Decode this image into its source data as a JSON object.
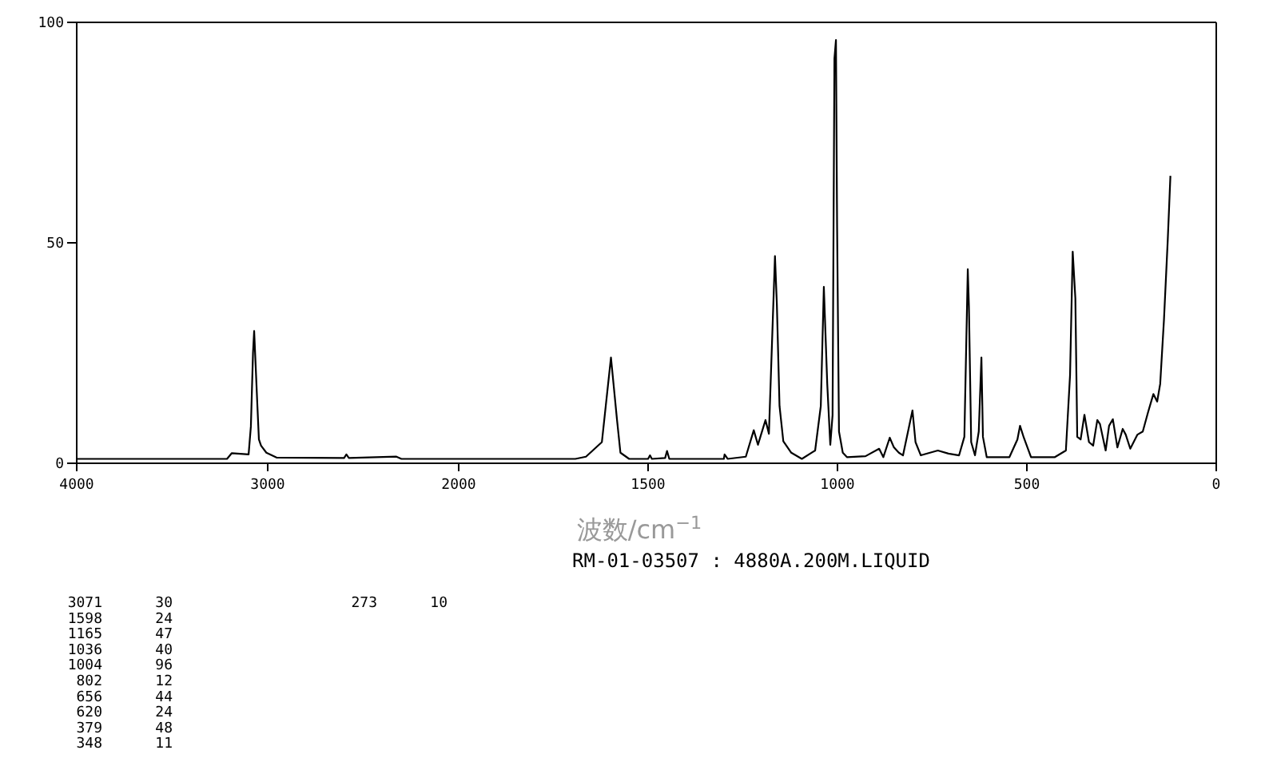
{
  "chart_data": [
    {
      "type": "line",
      "xlim": [
        4000,
        2000
      ],
      "ylim": [
        0,
        100
      ],
      "xticks": [
        4000,
        3000,
        2000
      ],
      "yticks": [
        0,
        50,
        100
      ],
      "series": [
        {
          "color": "#000000",
          "x": [
            4000,
            3213,
            3188,
            3100,
            3088,
            3077,
            3071,
            3054,
            3046,
            3035,
            3007,
            2954,
            2600,
            2588,
            2575,
            2326,
            2300,
            2000
          ],
          "values": [
            1,
            1,
            2.3,
            2,
            8.4,
            25,
            30,
            13,
            5.4,
            4,
            2.4,
            1.3,
            1.2,
            2,
            1.2,
            1.5,
            1,
            1
          ]
        }
      ]
    },
    {
      "type": "line",
      "xlabel": "波数/cm$^{−1}$",
      "subtitle": "RM-01-03507 : 4880A.200M.LIQUID",
      "xlim": [
        2000,
        0
      ],
      "ylim": [
        0,
        100
      ],
      "xticks": [
        {
          "value": 2000,
          "label": null
        },
        1500,
        1000,
        500,
        0
      ],
      "tick_labels": "x",
      "series": [
        {
          "color": "#000000",
          "x": [
            2000,
            1692,
            1664,
            1622,
            1598,
            1582,
            1573,
            1550,
            1500,
            1495,
            1490,
            1455,
            1450,
            1444,
            1300,
            1298,
            1290,
            1242,
            1221,
            1210,
            1190,
            1181,
            1165,
            1160,
            1153,
            1143,
            1122,
            1094,
            1059,
            1044,
            1036,
            1027,
            1019,
            1013,
            1008,
            1004,
            1001,
            996,
            986,
            975,
            926,
            890,
            879,
            862,
            851,
            838,
            827,
            802,
            794,
            780,
            735,
            707,
            679,
            665,
            656,
            653,
            647,
            637,
            627,
            620,
            616,
            606,
            546,
            525,
            518,
            508,
            489,
            426,
            397,
            386,
            379,
            372,
            367,
            358,
            348,
            336,
            325,
            314,
            307,
            292,
            283,
            273,
            261,
            247,
            239,
            227,
            208,
            194,
            180,
            166,
            156,
            148,
            138,
            128,
            121
          ],
          "values": [
            1,
            1,
            1.5,
            4.8,
            24,
            9.8,
            2.4,
            1,
            1,
            1.8,
            1,
            1.2,
            2.8,
            1,
            1,
            2,
            1,
            1.5,
            7.5,
            4.2,
            9.8,
            6.7,
            47,
            36,
            13,
            5,
            2.4,
            1,
            2.9,
            13,
            40,
            18,
            4.2,
            10.9,
            91.8,
            96,
            54,
            7.2,
            2.4,
            1.4,
            1.6,
            3.3,
            1.4,
            5.8,
            3.6,
            2.4,
            1.8,
            12,
            4.8,
            1.8,
            2.9,
            2.2,
            1.8,
            6,
            44,
            35.6,
            4.8,
            1.8,
            7.2,
            24,
            6,
            1.4,
            1.4,
            5.4,
            8.5,
            5.8,
            1.4,
            1.4,
            2.9,
            20,
            48,
            37.4,
            6,
            5.4,
            11,
            4.8,
            4,
            9.8,
            8.9,
            2.9,
            8.5,
            10,
            3.6,
            7.8,
            6.5,
            3.3,
            6.5,
            7.2,
            11.6,
            15.7,
            14,
            18,
            32.6,
            50.7,
            65.2
          ]
        }
      ],
      "annotations": [
        "3071 30",
        "1598 24",
        "1165 47",
        "1036 40",
        "1004 96",
        "802 12",
        "656 44",
        "620 24",
        "379 48",
        "348 11",
        "273 10"
      ]
    }
  ]
}
